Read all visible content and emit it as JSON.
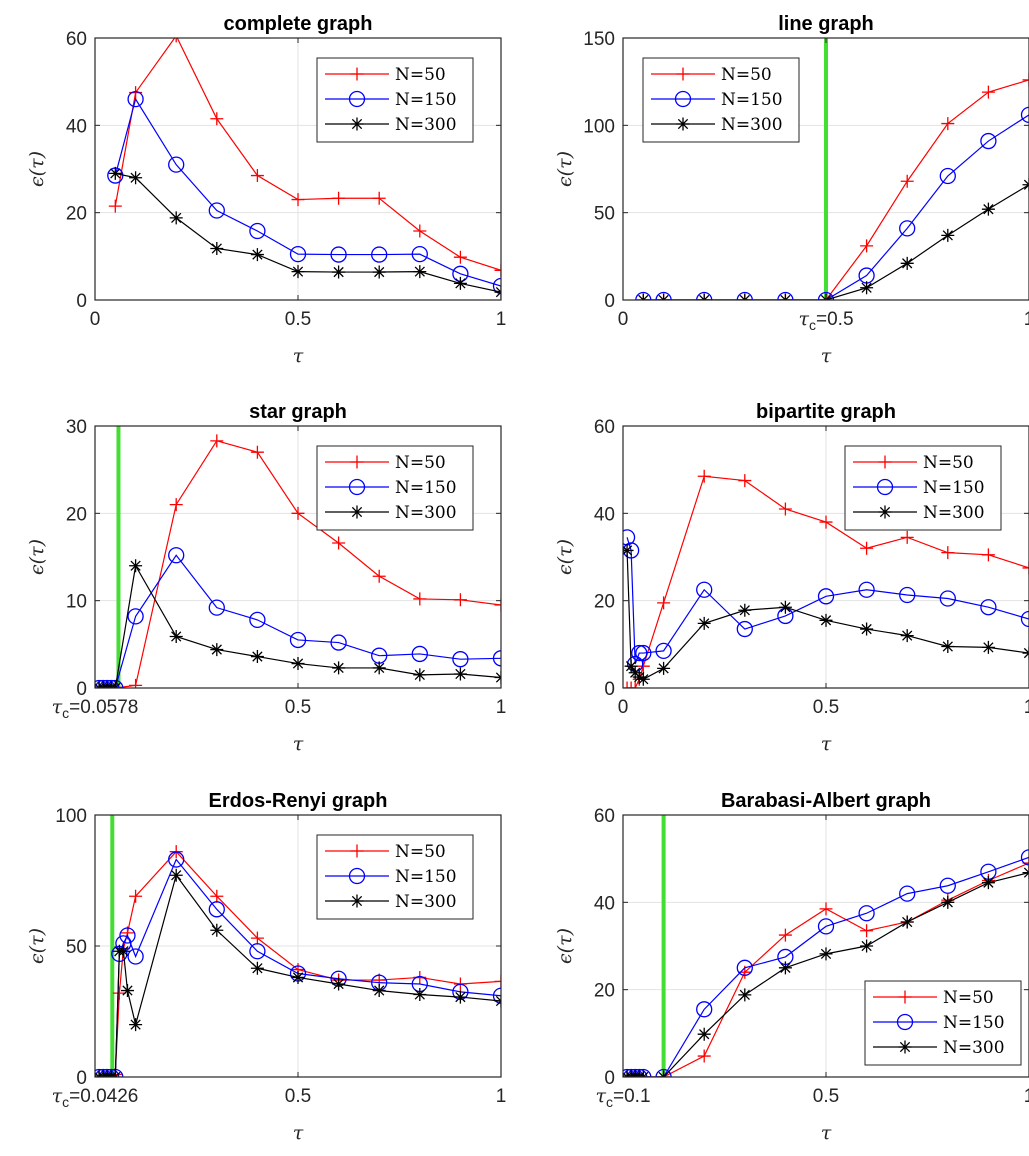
{
  "figure": {
    "series_names": [
      "N=50",
      "N=150",
      "N=300"
    ],
    "series_colors": [
      "#ff0000",
      "#0000ff",
      "#000000"
    ],
    "series_markers": [
      "plus",
      "circle",
      "asterisk"
    ],
    "threshold_color": "#44dd33",
    "xlabel": "τ",
    "ylabel": "ϵ(τ)"
  },
  "chart_data": [
    {
      "type": "line",
      "title": "complete graph",
      "xlabel": "τ",
      "ylabel": "ϵ(τ)",
      "xlim": [
        0,
        1
      ],
      "ylim": [
        0,
        60
      ],
      "xticks": [
        {
          "v": 0,
          "label": "0"
        },
        {
          "v": 0.5,
          "label": "0.5"
        },
        {
          "v": 1,
          "label": "1"
        }
      ],
      "yticks": [
        0,
        20,
        40,
        60
      ],
      "grid": true,
      "legend_position": "top-right",
      "threshold": null,
      "series": [
        {
          "name": "N=50",
          "x": [
            0.05,
            0.1,
            0.2,
            0.3,
            0.4,
            0.5,
            0.6,
            0.7,
            0.8,
            0.9,
            1.0
          ],
          "y": [
            21.5,
            47.5,
            60.5,
            41.5,
            28.5,
            23.0,
            23.3,
            23.3,
            15.8,
            9.8,
            6.8
          ]
        },
        {
          "name": "N=150",
          "x": [
            0.05,
            0.1,
            0.2,
            0.3,
            0.4,
            0.5,
            0.6,
            0.7,
            0.8,
            0.9,
            1.0
          ],
          "y": [
            28.5,
            46.0,
            31.0,
            20.5,
            15.8,
            10.5,
            10.4,
            10.4,
            10.5,
            6.0,
            3.2
          ]
        },
        {
          "name": "N=300",
          "x": [
            0.05,
            0.1,
            0.2,
            0.3,
            0.4,
            0.5,
            0.6,
            0.7,
            0.8,
            0.9,
            1.0
          ],
          "y": [
            29.0,
            28.0,
            18.8,
            11.8,
            10.4,
            6.5,
            6.4,
            6.4,
            6.5,
            3.8,
            1.8
          ]
        }
      ]
    },
    {
      "type": "line",
      "title": "line graph",
      "xlabel": "τ",
      "ylabel": "ϵ(τ)",
      "xlim": [
        0,
        1
      ],
      "ylim": [
        0,
        150
      ],
      "xticks": [
        {
          "v": 0,
          "label": "0"
        },
        {
          "v": 0.5,
          "label": "τc=0.5"
        },
        {
          "v": 1,
          "label": "1"
        }
      ],
      "yticks": [
        0,
        50,
        100,
        150
      ],
      "grid": true,
      "legend_position": "top-left",
      "threshold": 0.5,
      "series": [
        {
          "name": "N=50",
          "x": [
            0.05,
            0.1,
            0.2,
            0.3,
            0.4,
            0.5,
            0.6,
            0.7,
            0.8,
            0.9,
            1.0
          ],
          "y": [
            0,
            0,
            0,
            0,
            0,
            0,
            31,
            68,
            101,
            119,
            126
          ]
        },
        {
          "name": "N=150",
          "x": [
            0.05,
            0.1,
            0.2,
            0.3,
            0.4,
            0.5,
            0.6,
            0.7,
            0.8,
            0.9,
            1.0
          ],
          "y": [
            0,
            0,
            0,
            0,
            0,
            0,
            14,
            41,
            71,
            91,
            106
          ]
        },
        {
          "name": "N=300",
          "x": [
            0.05,
            0.1,
            0.2,
            0.3,
            0.4,
            0.5,
            0.6,
            0.7,
            0.8,
            0.9,
            1.0
          ],
          "y": [
            0,
            0,
            0,
            0,
            0,
            0,
            7,
            21,
            37,
            52,
            66
          ]
        }
      ]
    },
    {
      "type": "line",
      "title": "star graph",
      "xlabel": "τ",
      "ylabel": "ϵ(τ)",
      "xlim": [
        0,
        1
      ],
      "ylim": [
        0,
        30
      ],
      "xticks": [
        {
          "v": 0,
          "label": "τc=0.0578"
        },
        {
          "v": 0.5,
          "label": "0.5"
        },
        {
          "v": 1,
          "label": "1"
        }
      ],
      "yticks": [
        0,
        10,
        20,
        30
      ],
      "grid": true,
      "legend_position": "top-right",
      "threshold": 0.0578,
      "series": [
        {
          "name": "N=50",
          "x": [
            0.01,
            0.02,
            0.03,
            0.04,
            0.05,
            0.1,
            0.2,
            0.3,
            0.4,
            0.5,
            0.6,
            0.7,
            0.8,
            0.9,
            1.0
          ],
          "y": [
            0,
            0,
            0,
            0,
            0,
            0.3,
            21,
            28.3,
            27,
            20,
            16.6,
            12.8,
            10.2,
            10.1,
            9.5
          ]
        },
        {
          "name": "N=150",
          "x": [
            0.01,
            0.02,
            0.03,
            0.04,
            0.05,
            0.1,
            0.2,
            0.3,
            0.4,
            0.5,
            0.6,
            0.7,
            0.8,
            0.9,
            1.0
          ],
          "y": [
            0,
            0,
            0,
            0,
            0,
            8.2,
            15.2,
            9.2,
            7.8,
            5.5,
            5.2,
            3.7,
            3.9,
            3.3,
            3.4
          ]
        },
        {
          "name": "N=300",
          "x": [
            0.01,
            0.02,
            0.03,
            0.04,
            0.05,
            0.1,
            0.2,
            0.3,
            0.4,
            0.5,
            0.6,
            0.7,
            0.8,
            0.9,
            1.0
          ],
          "y": [
            0,
            0,
            0,
            0,
            0,
            14,
            5.9,
            4.4,
            3.6,
            2.8,
            2.3,
            2.3,
            1.5,
            1.6,
            1.2
          ]
        }
      ]
    },
    {
      "type": "line",
      "title": "bipartite graph",
      "xlabel": "τ",
      "ylabel": "ϵ(τ)",
      "xlim": [
        0,
        1
      ],
      "ylim": [
        0,
        60
      ],
      "xticks": [
        {
          "v": 0,
          "label": "0"
        },
        {
          "v": 0.5,
          "label": "0.5"
        },
        {
          "v": 1,
          "label": "1"
        }
      ],
      "yticks": [
        0,
        20,
        40,
        60
      ],
      "grid": true,
      "legend_position": "top-right",
      "threshold": null,
      "series": [
        {
          "name": "N=50",
          "x": [
            0.01,
            0.02,
            0.03,
            0.04,
            0.05,
            0.1,
            0.2,
            0.3,
            0.4,
            0.5,
            0.6,
            0.7,
            0.8,
            0.9,
            1.0
          ],
          "y": [
            0,
            0,
            0,
            2,
            5,
            19.5,
            48.5,
            47.5,
            41,
            38,
            32,
            34.5,
            31,
            30.5,
            27.5
          ]
        },
        {
          "name": "N=150",
          "x": [
            0.01,
            0.02,
            0.03,
            0.04,
            0.05,
            0.1,
            0.2,
            0.3,
            0.4,
            0.5,
            0.6,
            0.7,
            0.8,
            0.9,
            1.0
          ],
          "y": [
            34.5,
            31.5,
            5.5,
            8.0,
            8.0,
            8.5,
            22.5,
            13.5,
            16.5,
            21,
            22.5,
            21.3,
            20.5,
            18.5,
            15.8
          ]
        },
        {
          "name": "N=300",
          "x": [
            0.01,
            0.02,
            0.03,
            0.04,
            0.05,
            0.1,
            0.2,
            0.3,
            0.4,
            0.5,
            0.6,
            0.7,
            0.8,
            0.9,
            1.0
          ],
          "y": [
            31.5,
            5,
            3.5,
            2.5,
            2,
            4.5,
            14.8,
            17.8,
            18.5,
            15.5,
            13.5,
            12,
            9.5,
            9.3,
            8
          ]
        }
      ]
    },
    {
      "type": "line",
      "title": "Erdos-Renyi graph",
      "xlabel": "τ",
      "ylabel": "ϵ(τ)",
      "xlim": [
        0,
        1
      ],
      "ylim": [
        0,
        100
      ],
      "xticks": [
        {
          "v": 0,
          "label": "τc=0.0426"
        },
        {
          "v": 0.5,
          "label": "0.5"
        },
        {
          "v": 1,
          "label": "1"
        }
      ],
      "yticks": [
        0,
        50,
        100
      ],
      "grid": true,
      "legend_position": "top-right",
      "threshold": 0.0426,
      "series": [
        {
          "name": "N=50",
          "x": [
            0.01,
            0.02,
            0.03,
            0.04,
            0.05,
            0.06,
            0.07,
            0.08,
            0.1,
            0.2,
            0.3,
            0.4,
            0.5,
            0.6,
            0.7,
            0.8,
            0.9,
            1.0
          ],
          "y": [
            0,
            0,
            0,
            0,
            1,
            32,
            49,
            55,
            69,
            86,
            69,
            53,
            41,
            37,
            37,
            38,
            35.5,
            36.5
          ]
        },
        {
          "name": "N=150",
          "x": [
            0.01,
            0.02,
            0.03,
            0.04,
            0.05,
            0.06,
            0.07,
            0.08,
            0.1,
            0.2,
            0.3,
            0.4,
            0.5,
            0.6,
            0.7,
            0.8,
            0.9,
            1.0
          ],
          "y": [
            0,
            0,
            0,
            0,
            0,
            47,
            51,
            54,
            46,
            83,
            64,
            48,
            39.5,
            37.5,
            36,
            35.5,
            32.5,
            31
          ]
        },
        {
          "name": "N=300",
          "x": [
            0.01,
            0.02,
            0.03,
            0.04,
            0.05,
            0.06,
            0.07,
            0.08,
            0.1,
            0.2,
            0.3,
            0.4,
            0.5,
            0.6,
            0.7,
            0.8,
            0.9,
            1.0
          ],
          "y": [
            0,
            0,
            0,
            0,
            0,
            48,
            48,
            33,
            20,
            77,
            56,
            41.5,
            38,
            35.5,
            33,
            31.5,
            30.5,
            29
          ]
        }
      ]
    },
    {
      "type": "line",
      "title": "Barabasi-Albert graph",
      "xlabel": "τ",
      "ylabel": "ϵ(τ)",
      "xlim": [
        0,
        1
      ],
      "ylim": [
        0,
        60
      ],
      "xticks": [
        {
          "v": 0,
          "label": "τc=0.1"
        },
        {
          "v": 0.5,
          "label": "0.5"
        },
        {
          "v": 1,
          "label": "1"
        }
      ],
      "yticks": [
        0,
        20,
        40,
        60
      ],
      "grid": true,
      "legend_position": "bottom-right",
      "threshold": 0.1,
      "series": [
        {
          "name": "N=50",
          "x": [
            0.01,
            0.02,
            0.03,
            0.04,
            0.05,
            0.1,
            0.2,
            0.3,
            0.4,
            0.5,
            0.6,
            0.7,
            0.8,
            0.9,
            1.0
          ],
          "y": [
            0,
            0,
            0,
            0,
            0,
            0,
            4.8,
            24,
            32.5,
            38.5,
            33.5,
            35.5,
            40.5,
            45,
            49
          ]
        },
        {
          "name": "N=150",
          "x": [
            0.01,
            0.02,
            0.03,
            0.04,
            0.05,
            0.1,
            0.2,
            0.3,
            0.4,
            0.5,
            0.6,
            0.7,
            0.8,
            0.9,
            1.0
          ],
          "y": [
            0,
            0,
            0,
            0,
            0,
            0,
            15.5,
            25,
            27.5,
            34.5,
            37.5,
            42,
            43.8,
            47,
            50.3
          ]
        },
        {
          "name": "N=300",
          "x": [
            0.01,
            0.02,
            0.03,
            0.04,
            0.05,
            0.1,
            0.2,
            0.3,
            0.4,
            0.5,
            0.6,
            0.7,
            0.8,
            0.9,
            1.0
          ],
          "y": [
            0,
            0,
            0,
            0,
            0,
            0,
            9.8,
            18.8,
            25,
            28.2,
            30,
            35.5,
            40,
            44.5,
            46.8
          ]
        }
      ]
    }
  ]
}
